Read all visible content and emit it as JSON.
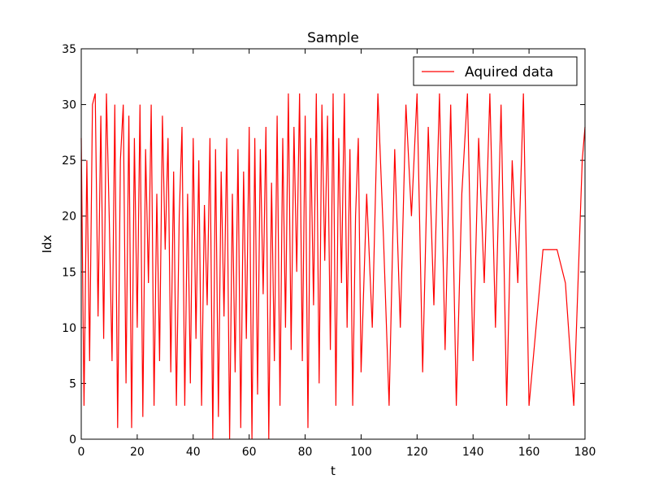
{
  "chart_data": {
    "type": "line",
    "title": "Sample",
    "xlabel": "t",
    "ylabel": "Idx",
    "xlim": [
      0,
      180
    ],
    "ylim": [
      0,
      35
    ],
    "xticks": [
      0,
      20,
      40,
      60,
      80,
      100,
      120,
      140,
      160,
      180
    ],
    "yticks": [
      0,
      5,
      10,
      15,
      20,
      25,
      30,
      35
    ],
    "x_tick_labels": [
      "0",
      "20",
      "40",
      "60",
      "80",
      "100",
      "120",
      "140",
      "160",
      "180"
    ],
    "y_tick_labels": [
      "0",
      "5",
      "10",
      "15",
      "20",
      "25",
      "30",
      "35"
    ],
    "grid": false,
    "legend_position": "top-right",
    "series": [
      {
        "name": "Aquired data",
        "color": "#ff0000",
        "x": [
          0,
          1,
          2,
          3,
          4,
          5,
          6,
          7,
          8,
          9,
          10,
          11,
          12,
          13,
          14,
          15,
          16,
          17,
          18,
          19,
          20,
          21,
          22,
          23,
          24,
          25,
          26,
          27,
          28,
          29,
          30,
          31,
          32,
          33,
          34,
          35,
          36,
          37,
          38,
          39,
          40,
          41,
          42,
          43,
          44,
          45,
          46,
          47,
          48,
          49,
          50,
          51,
          52,
          53,
          54,
          55,
          56,
          57,
          58,
          59,
          60,
          61,
          62,
          63,
          64,
          65,
          66,
          67,
          68,
          69,
          70,
          71,
          72,
          73,
          74,
          75,
          76,
          77,
          78,
          79,
          80,
          81,
          82,
          83,
          84,
          85,
          86,
          87,
          88,
          89,
          90,
          91,
          92,
          93,
          94,
          95,
          96,
          97,
          98,
          99,
          100,
          102,
          104,
          106,
          108,
          110,
          112,
          114,
          116,
          118,
          120,
          122,
          124,
          126,
          128,
          130,
          132,
          134,
          136,
          138,
          140,
          142,
          144,
          146,
          148,
          150,
          152,
          154,
          156,
          158,
          160,
          165,
          170,
          173,
          176,
          179,
          180
        ],
        "y": [
          27,
          3,
          25,
          7,
          30,
          31,
          11,
          29,
          9,
          31,
          20,
          7,
          30,
          1,
          25,
          30,
          5,
          29,
          1,
          27,
          10,
          30,
          2,
          26,
          14,
          30,
          3,
          22,
          7,
          29,
          17,
          27,
          6,
          24,
          3,
          20,
          28,
          3,
          22,
          5,
          27,
          9,
          25,
          3,
          21,
          12,
          27,
          0,
          26,
          2,
          24,
          11,
          27,
          0,
          22,
          6,
          26,
          1,
          24,
          9,
          28,
          0,
          27,
          4,
          26,
          13,
          28,
          0,
          23,
          7,
          29,
          3,
          27,
          10,
          31,
          8,
          28,
          15,
          31,
          7,
          29,
          1,
          27,
          12,
          31,
          5,
          30,
          16,
          29,
          8,
          31,
          3,
          27,
          14,
          31,
          10,
          26,
          3,
          20,
          27,
          6,
          22,
          10,
          31,
          18,
          3,
          26,
          10,
          30,
          20,
          31,
          6,
          28,
          12,
          31,
          8,
          30,
          3,
          22,
          31,
          7,
          27,
          14,
          31,
          10,
          30,
          3,
          25,
          14,
          31,
          3,
          17,
          17,
          14,
          3,
          25,
          28
        ]
      }
    ]
  }
}
